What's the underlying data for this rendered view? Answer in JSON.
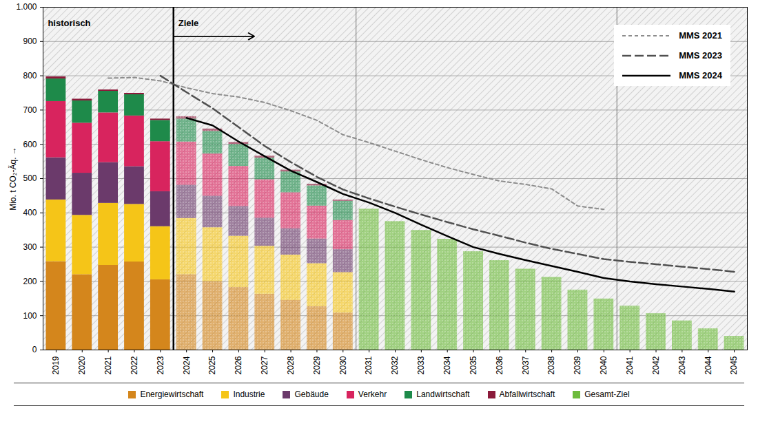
{
  "chart_data": {
    "type": "bar",
    "stacked": true,
    "grid": true,
    "legend": "bottom",
    "ylabel": "Mio. t CO₂-Äq.",
    "ylim": [
      0,
      1000
    ],
    "yticks": [
      0,
      100,
      200,
      300,
      400,
      500,
      600,
      700,
      800,
      900,
      {
        "value": 1000,
        "label": "1.000"
      }
    ],
    "annotations": [
      {
        "text": "historisch",
        "x": "2019"
      },
      {
        "text": "Ziele",
        "x": "2024"
      }
    ],
    "categories": [
      "2019",
      "2020",
      "2021",
      "2022",
      "2023",
      "2024",
      "2025",
      "2026",
      "2027",
      "2028",
      "2029",
      "2030",
      "2031",
      "2032",
      "2033",
      "2034",
      "2035",
      "2036",
      "2037",
      "2038",
      "2039",
      "2040",
      "2041",
      "2042",
      "2043",
      "2044",
      "2045"
    ],
    "series": [
      {
        "name": "Energiewirtschaft",
        "type": "bar",
        "color": "#d4861c",
        "values": [
          258,
          220,
          247,
          257,
          205,
          220,
          200,
          183,
          163,
          145,
          127,
          108,
          null,
          null,
          null,
          null,
          null,
          null,
          null,
          null,
          null,
          null,
          null,
          null,
          null,
          null,
          null
        ]
      },
      {
        "name": "Industrie",
        "type": "bar",
        "color": "#f5c518",
        "values": [
          180,
          173,
          181,
          168,
          155,
          164,
          157,
          149,
          140,
          132,
          125,
          118,
          null,
          null,
          null,
          null,
          null,
          null,
          null,
          null,
          null,
          null,
          null,
          null,
          null,
          null,
          null
        ]
      },
      {
        "name": "Gebäude",
        "type": "bar",
        "color": "#6b3a6b",
        "values": [
          123,
          123,
          119,
          110,
          102,
          97,
          92,
          87,
          82,
          77,
          72,
          67,
          null,
          null,
          null,
          null,
          null,
          null,
          null,
          null,
          null,
          null,
          null,
          null,
          null,
          null,
          null
        ]
      },
      {
        "name": "Verkehr",
        "type": "bar",
        "color": "#d8245e",
        "values": [
          164,
          146,
          145,
          148,
          146,
          126,
          123,
          117,
          112,
          105,
          96,
          85,
          null,
          null,
          null,
          null,
          null,
          null,
          null,
          null,
          null,
          null,
          null,
          null,
          null,
          null,
          null
        ]
      },
      {
        "name": "Landwirtschaft",
        "type": "bar",
        "color": "#1e8a4a",
        "values": [
          66,
          65,
          63,
          62,
          62,
          67,
          66,
          64,
          63,
          61,
          59,
          56,
          null,
          null,
          null,
          null,
          null,
          null,
          null,
          null,
          null,
          null,
          null,
          null,
          null,
          null,
          null
        ]
      },
      {
        "name": "Abfallwirtschaft",
        "type": "bar",
        "color": "#8b1a3a",
        "values": [
          6,
          5,
          4,
          4,
          4,
          7,
          7,
          6,
          6,
          5,
          5,
          4,
          null,
          null,
          null,
          null,
          null,
          null,
          null,
          null,
          null,
          null,
          null,
          null,
          null,
          null,
          null
        ]
      },
      {
        "name": "Gesamt-Ziel",
        "type": "bar",
        "color": "#6dbb3c",
        "values": [
          null,
          null,
          null,
          null,
          null,
          null,
          null,
          null,
          null,
          null,
          null,
          null,
          411,
          375,
          349,
          323,
          287,
          261,
          236,
          212,
          175,
          149,
          128,
          106,
          85,
          62,
          40
        ]
      },
      {
        "name": "MMS 2021",
        "type": "line",
        "line_style": "dashed",
        "color": "#8c8c8c",
        "values": [
          null,
          null,
          793,
          795,
          785,
          765,
          748,
          738,
          722,
          698,
          670,
          628,
          605,
          580,
          555,
          532,
          512,
          493,
          483,
          470,
          420,
          410,
          null,
          null,
          null,
          null,
          null
        ]
      },
      {
        "name": "MMS 2023",
        "type": "line",
        "line_style": "longdash",
        "color": "#505050",
        "values": [
          null,
          null,
          null,
          null,
          800,
          752,
          705,
          650,
          595,
          548,
          505,
          468,
          442,
          418,
          395,
          373,
          352,
          333,
          313,
          295,
          280,
          265,
          257,
          250,
          243,
          236,
          228
        ]
      },
      {
        "name": "MMS 2024",
        "type": "line",
        "line_style": "solid",
        "color": "#000000",
        "values": [
          null,
          null,
          null,
          null,
          null,
          677,
          655,
          608,
          565,
          523,
          490,
          455,
          430,
          400,
          365,
          332,
          300,
          280,
          262,
          245,
          228,
          210,
          200,
          192,
          185,
          178,
          170
        ]
      }
    ]
  }
}
